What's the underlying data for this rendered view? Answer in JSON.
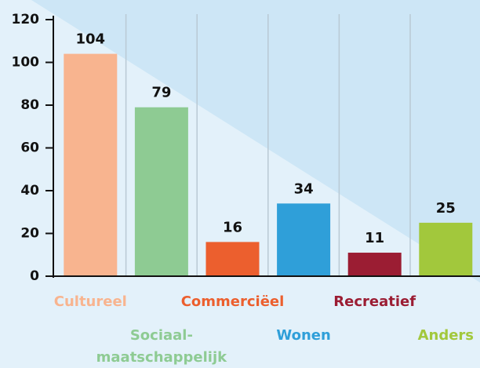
{
  "chart_data": {
    "type": "bar",
    "categories": [
      "Cultureel",
      "Sociaal-maatschappelijk",
      "Commerciëel",
      "Wonen",
      "Recreatief",
      "Anders"
    ],
    "values": [
      104,
      79,
      16,
      34,
      11,
      25
    ],
    "colors": [
      "#f8b48f",
      "#8ecb93",
      "#ec5f2e",
      "#2f9fd9",
      "#9b1d33",
      "#a2c83c"
    ],
    "ylim": [
      0,
      120
    ],
    "yticks": [
      0,
      20,
      40,
      60,
      80,
      100,
      120
    ]
  }
}
